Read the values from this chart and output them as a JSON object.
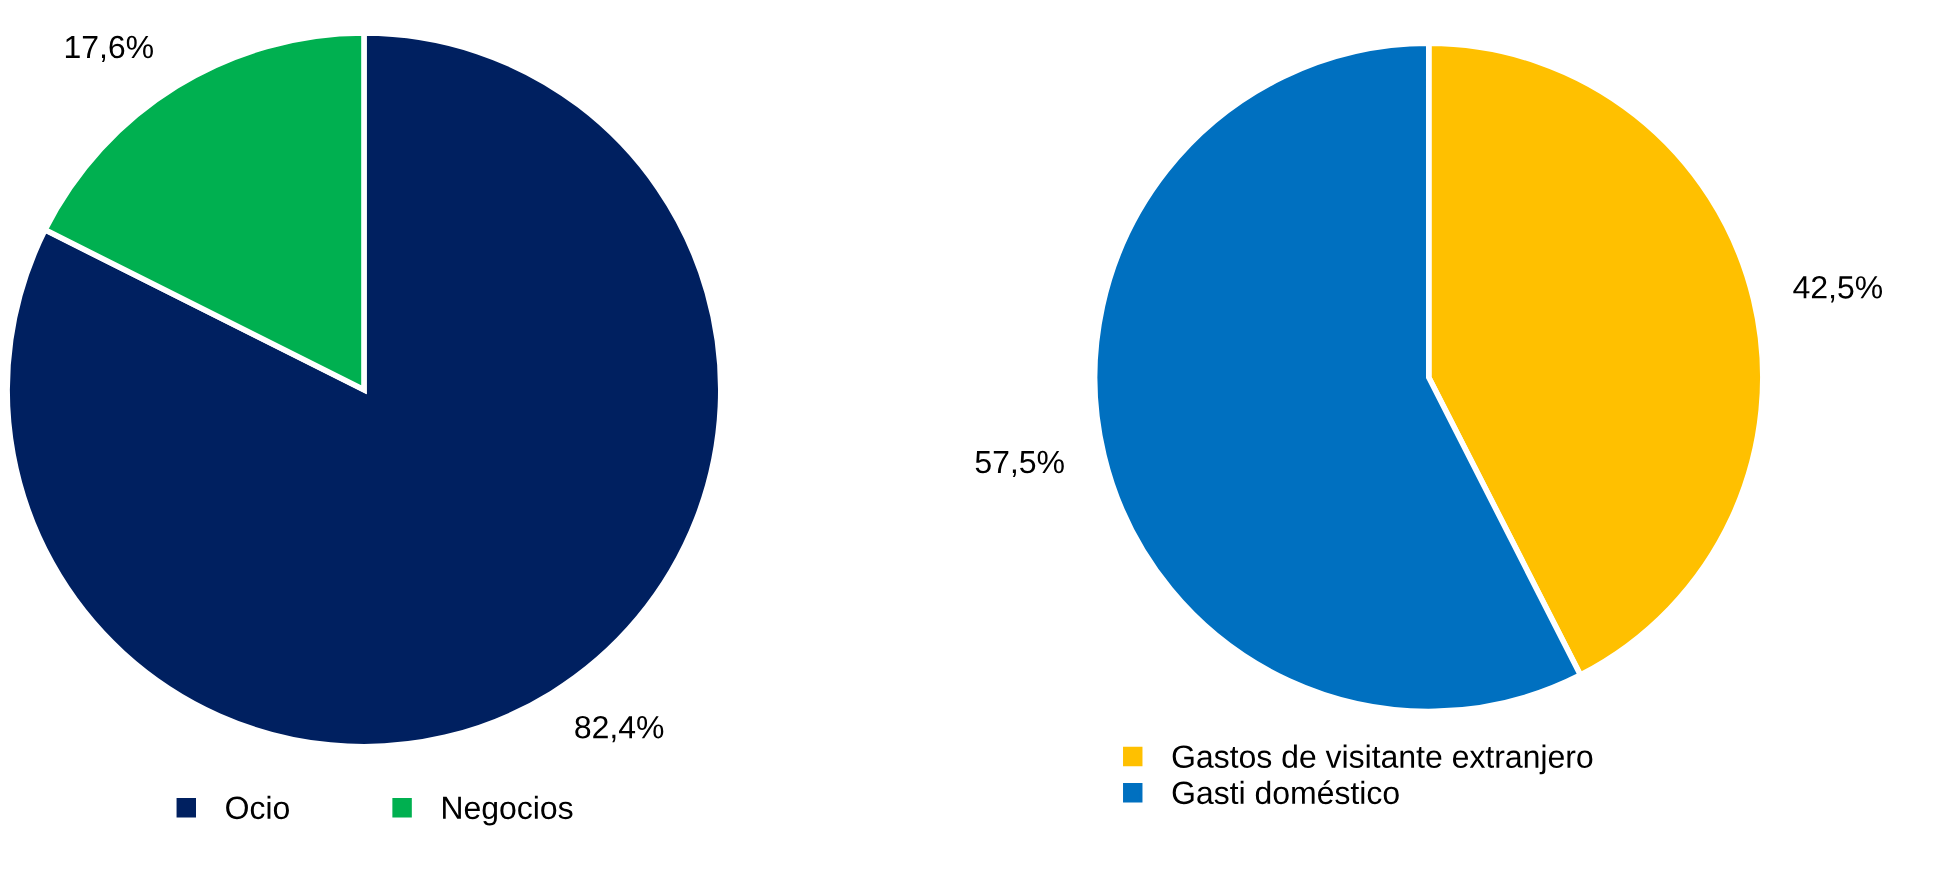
{
  "chart_data": [
    {
      "type": "pie",
      "categories": [
        "Ocio",
        "Negocios"
      ],
      "values": [
        82.4,
        17.6
      ],
      "colors": [
        "#002060",
        "#00b050"
      ],
      "value_labels": [
        "82,4%",
        "17,6%"
      ],
      "legend": "bottom"
    },
    {
      "type": "pie",
      "categories": [
        "Gastos de visitante extranjero",
        "Gasti doméstico"
      ],
      "values": [
        42.5,
        57.5
      ],
      "colors": [
        "#ffc000",
        "#0070c0"
      ],
      "value_labels": [
        "42,5%",
        "57,5%"
      ],
      "legend": "bottom left"
    }
  ]
}
